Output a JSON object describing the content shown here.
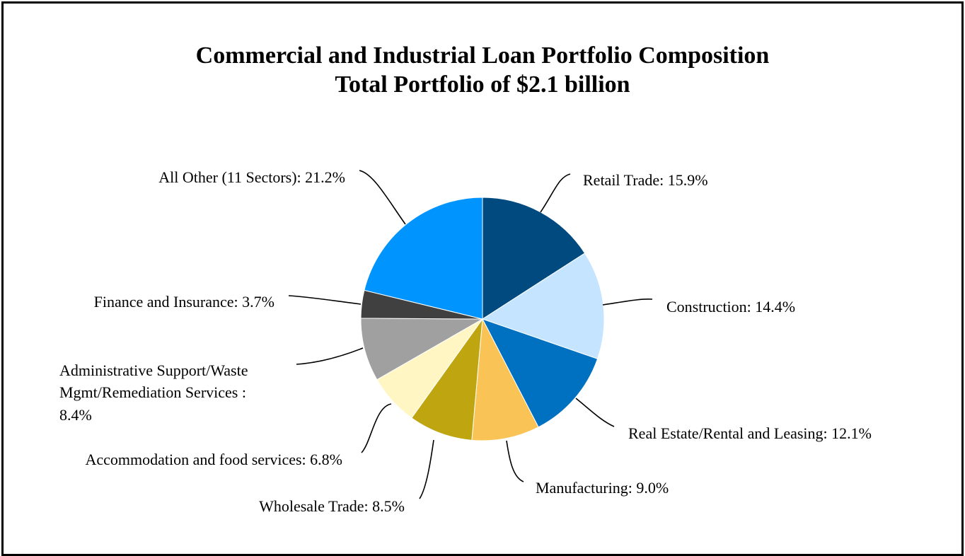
{
  "chart_data": {
    "type": "pie",
    "title": "Commercial and Industrial Loan Portfolio Composition",
    "subtitle": "Total Portfolio of $2.1 billion",
    "unit": "%",
    "slices": [
      {
        "label": "Retail Trade: 15.9%",
        "value": 15.9,
        "color": "#004A80"
      },
      {
        "label": "Construction: 14.4%",
        "value": 14.4,
        "color": "#C4E4FF"
      },
      {
        "label": "Real Estate/Rental and Leasing: 12.1%",
        "value": 12.1,
        "color": "#0070C0"
      },
      {
        "label": "Manufacturing: 9.0%",
        "value": 9.0,
        "color": "#F9C355"
      },
      {
        "label": "Wholesale Trade: 8.5%",
        "value": 8.5,
        "color": "#BFA510"
      },
      {
        "label": "Accommodation and food services: 6.8%",
        "value": 6.8,
        "color": "#FFF6C4"
      },
      {
        "label": "Administrative Support/Waste Mgmt/Remediation Services : 8.4%",
        "value": 8.4,
        "color": "#A0A0A0",
        "label_lines": [
          "Administrative Support/Waste",
          "Mgmt/Remediation Services :",
          "8.4%"
        ]
      },
      {
        "label": "Finance and Insurance: 3.7%",
        "value": 3.7,
        "color": "#404040"
      },
      {
        "label": "All Other (11 Sectors): 21.2%",
        "value": 21.2,
        "color": "#0094FF"
      }
    ]
  }
}
